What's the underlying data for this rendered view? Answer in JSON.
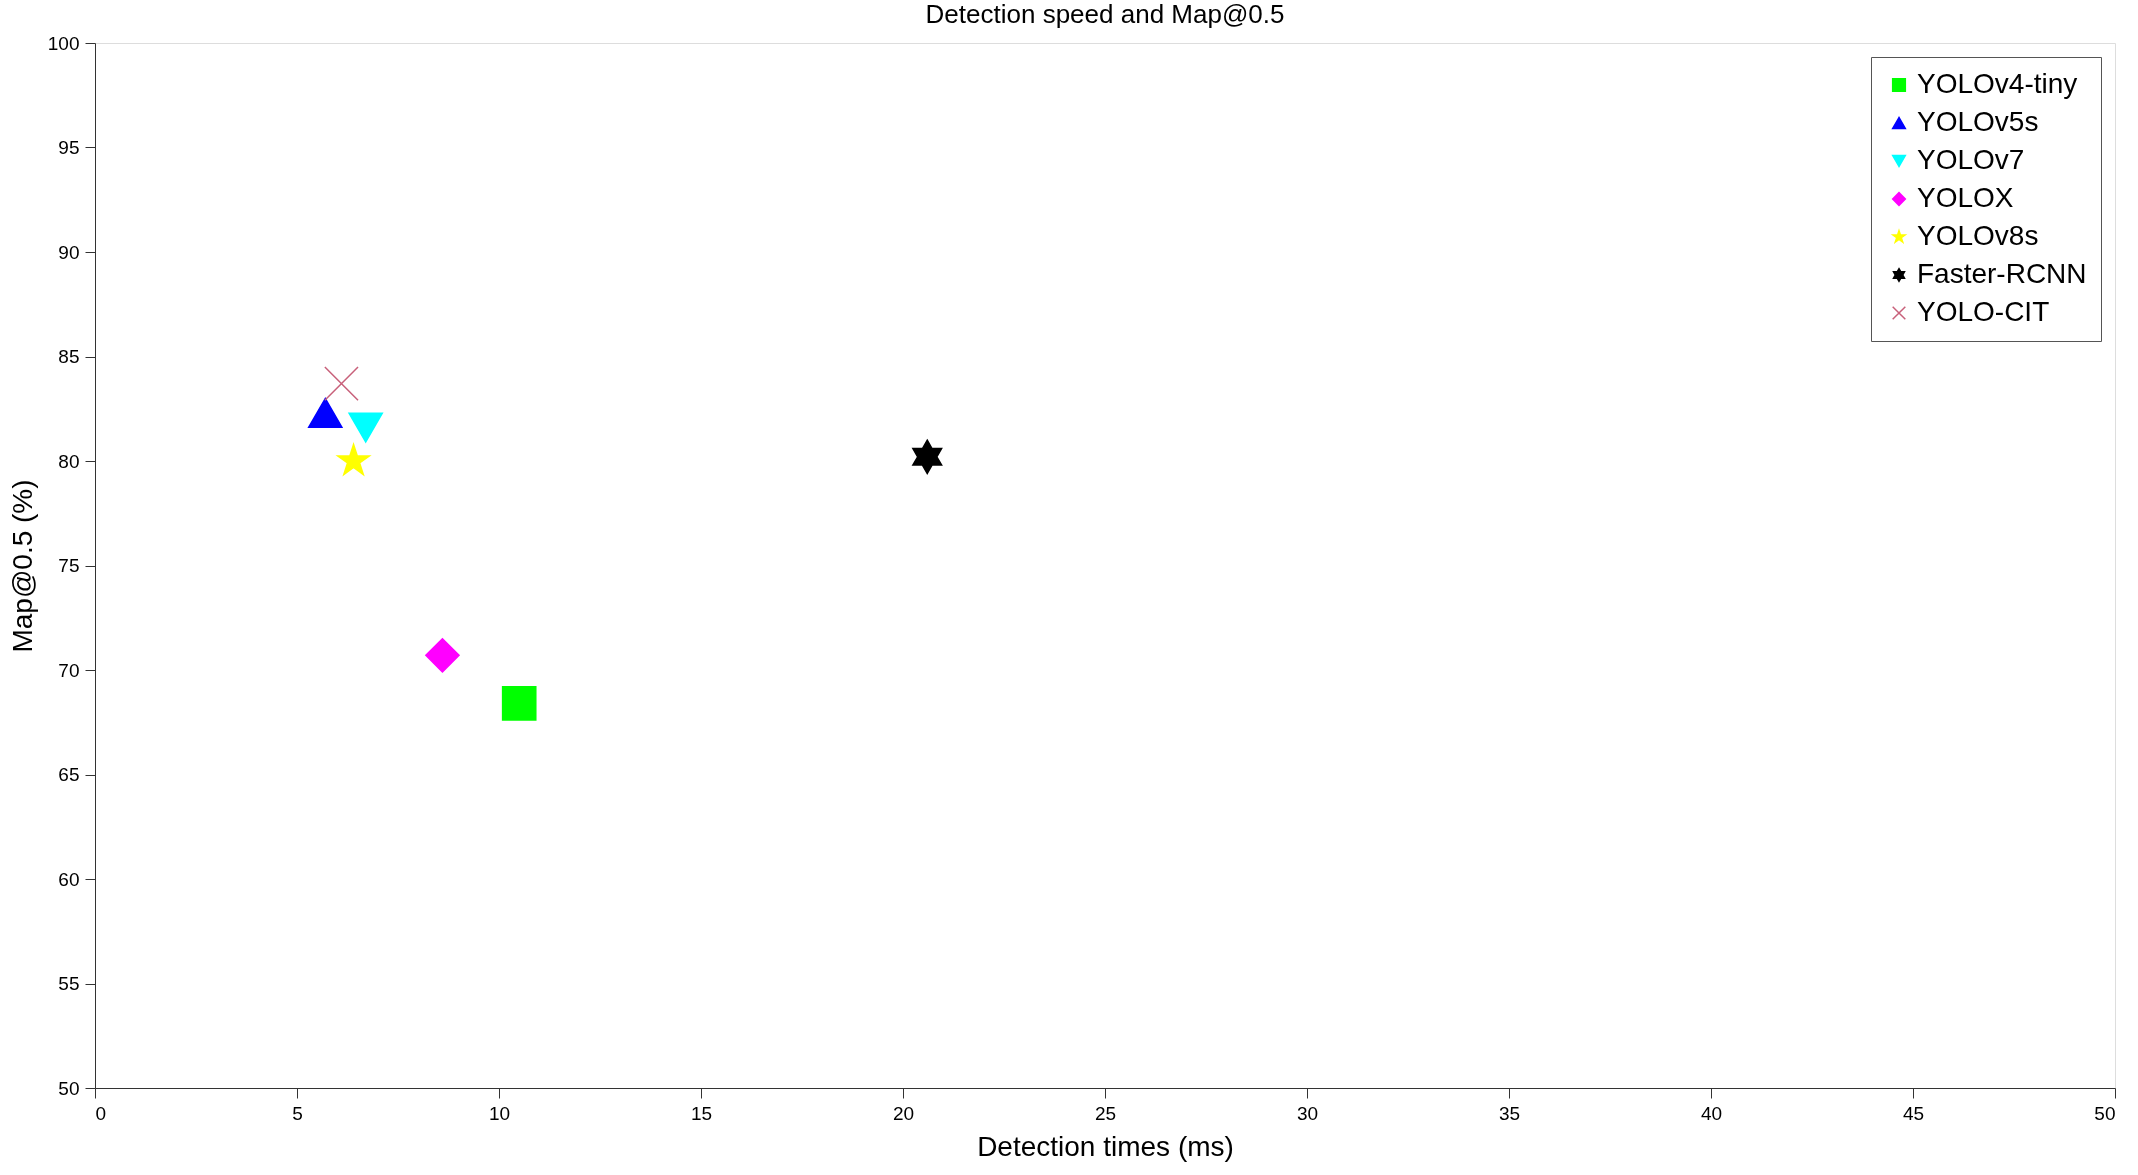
{
  "chart_data": {
    "type": "scatter",
    "title": "Detection speed and Map@0.5",
    "xlabel": "Detection times (ms)",
    "ylabel": "Map@0.5 (%)",
    "xlim": [
      0,
      50
    ],
    "xticks": [
      0,
      5,
      10,
      15,
      20,
      25,
      30,
      35,
      40,
      45,
      50
    ],
    "ylim": [
      50,
      100
    ],
    "yticks": [
      50,
      55,
      60,
      65,
      70,
      75,
      80,
      85,
      90,
      95,
      100
    ],
    "grid": false,
    "legend": "top right",
    "series": [
      {
        "name": "YOLOv4-tiny",
        "color": "#00ff00",
        "marker": "square",
        "x": [
          10.5
        ],
        "values": [
          68.4
        ]
      },
      {
        "name": "YOLOv5s",
        "color": "#0000ff",
        "marker": "triangle",
        "x": [
          5.7
        ],
        "values": [
          82.3
        ]
      },
      {
        "name": "YOLOv7",
        "color": "#00ffff",
        "marker": "triangle-down",
        "x": [
          6.7
        ],
        "values": [
          81.6
        ]
      },
      {
        "name": "YOLOX",
        "color": "#ff00ff",
        "marker": "diamond",
        "x": [
          8.6
        ],
        "values": [
          70.7
        ]
      },
      {
        "name": "YOLOv8s",
        "color": "#ffff00",
        "marker": "star",
        "x": [
          6.4
        ],
        "values": [
          80.0
        ]
      },
      {
        "name": "Faster-RCNN",
        "color": "#000000",
        "marker": "cross",
        "x": [
          20.6
        ],
        "values": [
          80.2
        ]
      },
      {
        "name": "YOLO-CIT",
        "color": "#c8607a",
        "marker": "x",
        "x": [
          6.1
        ],
        "values": [
          83.7
        ]
      }
    ]
  }
}
